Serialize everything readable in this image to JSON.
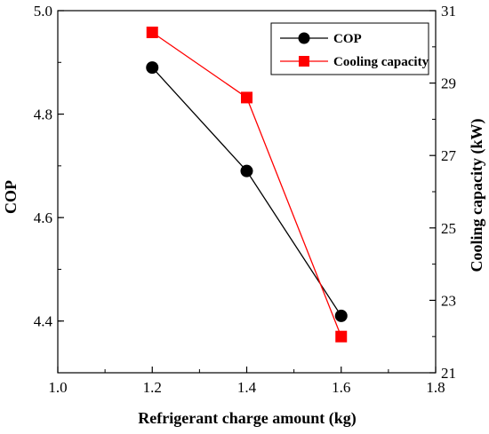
{
  "chart_data": {
    "type": "line",
    "xlabel": "Refrigerant charge amount (kg)",
    "ylabel_left": "COP",
    "ylabel_right": "Cooling capacity (kW)",
    "xlim": [
      1.0,
      1.8
    ],
    "ylim_left": [
      4.3,
      5.0
    ],
    "ylim_right": [
      21,
      31
    ],
    "x_ticks": [
      "1.0",
      "1.2",
      "1.4",
      "1.6",
      "1.8"
    ],
    "y_left_ticks": [
      "4.4",
      "4.6",
      "4.8",
      "5.0"
    ],
    "y_right_ticks": [
      "21",
      "23",
      "25",
      "27",
      "29",
      "31"
    ],
    "x": [
      1.2,
      1.4,
      1.6
    ],
    "series": [
      {
        "name": "COP",
        "axis": "left",
        "color": "#000000",
        "marker": "circle",
        "values": [
          4.89,
          4.69,
          4.41
        ]
      },
      {
        "name": "Cooling capacity",
        "axis": "right",
        "color": "#ff0000",
        "marker": "square",
        "values": [
          30.4,
          28.6,
          22.0
        ]
      }
    ],
    "legend_position": "top-right",
    "grid": false
  }
}
